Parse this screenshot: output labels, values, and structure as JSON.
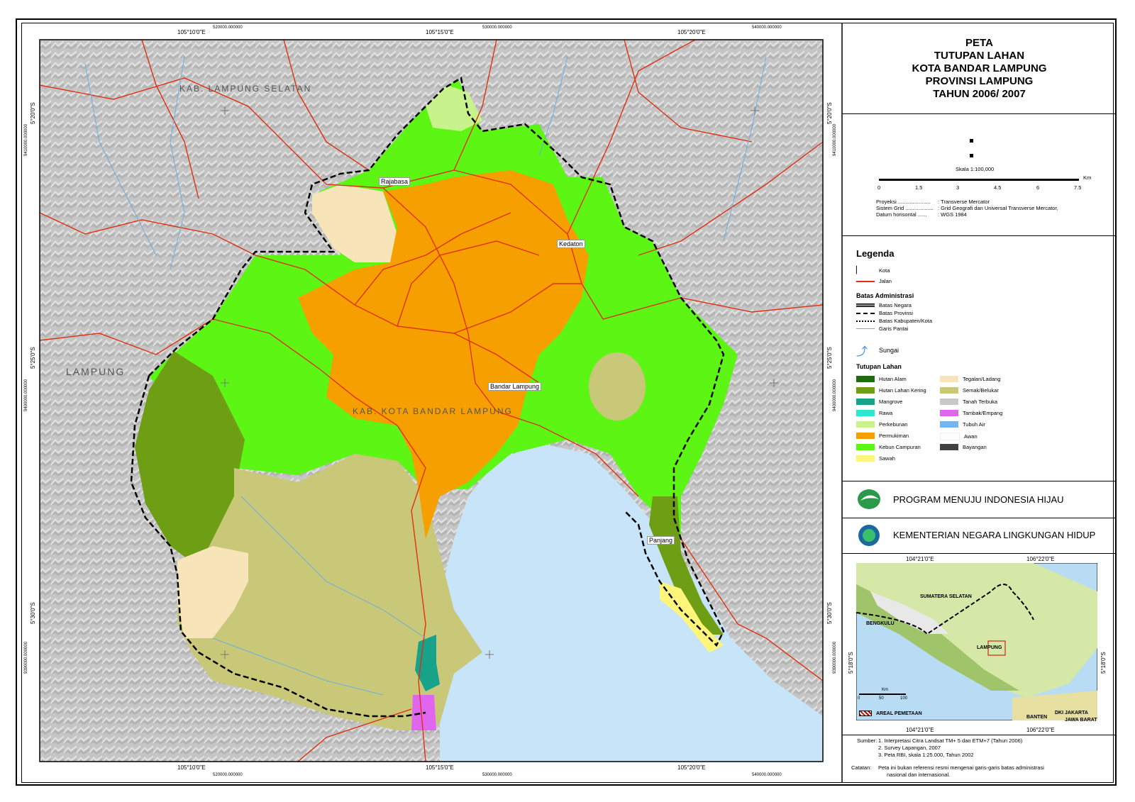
{
  "map": {
    "top_coords": [
      "105°10'0\"E",
      "105°15'0\"E",
      "105°20'0\"E"
    ],
    "top_utm": [
      "520000.000000",
      "530000.000000",
      "540000.000000"
    ],
    "bottom_coords": [
      "105°10'0\"E",
      "105°15'0\"E",
      "105°20'0\"E"
    ],
    "bottom_utm": [
      "520000.000000",
      "530000.000000",
      "540000.000000"
    ],
    "left_coords": [
      "5°20'0\"S",
      "5°25'0\"S",
      "5°30'0\"S"
    ],
    "left_utm": [
      "9410000.000000",
      "9400000.000000",
      "9390000.000000"
    ],
    "right_coords": [
      "5°20'0\"S",
      "5°25'0\"S",
      "5°30'0\"S"
    ],
    "right_utm": [
      "9410000.000000",
      "9400000.000000",
      "9390000.000000"
    ],
    "region_labels": [
      "KAB. LAMPUNG SELATAN",
      "LAMPUNG",
      "KAB. KOTA BANDAR LAMPUNG"
    ],
    "cities": [
      "Rajabasa",
      "Kedaton",
      "Bandar Lampung",
      "Panjang"
    ],
    "colors": {
      "hutan_alam": "#1e6b12",
      "hutan_lahan_kering": "#6e9e14",
      "mangrove": "#16a38a",
      "rawa": "#2de8d0",
      "perkebunan": "#c8f28c",
      "permukiman": "#f5a000",
      "kebun_campuran": "#5cf514",
      "sawah": "#fff57a",
      "tegalan": "#f7e4b8",
      "semak": "#c8c878",
      "tanah_terbuka": "#c8c8c8",
      "tambak": "#e066f0",
      "tubuh_air": "#76b4f0",
      "awan": "#ffffff",
      "bayangan": "#404040",
      "sea": "#c8e4f8",
      "road": "#e03010",
      "river": "#6aaee0"
    }
  },
  "title": {
    "lines": [
      "PETA",
      "TUTUPAN LAHAN",
      "KOTA BANDAR LAMPUNG",
      "PROVINSI LAMPUNG",
      "TAHUN 2006/ 2007"
    ]
  },
  "scale": {
    "label": "Skala  1:100,000",
    "ticks": [
      "0",
      "1.5",
      "3",
      "4.5",
      "6",
      "7.5"
    ],
    "unit": "Km",
    "proj_keys": [
      "Proyeksi ......................",
      "Sistem Grid ...................",
      "Datum horisontal ......"
    ],
    "proj_vals": [
      ": Transverse Mercator",
      ": Grid Geografi dan Universal Transverse Mercator,",
      ": WGS 1984"
    ]
  },
  "legend": {
    "title": "Legenda",
    "kota": "Kota",
    "jalan": "Jalan",
    "batas_title": "Batas Administrasi",
    "batas": [
      "Batas Negara",
      "Batas Provinsi",
      "Batas Kabupaten/Kota",
      "Garis Pantai"
    ],
    "sungai": "Sungai",
    "tutupan_title": "Tutupan Lahan",
    "left_items": [
      "Hutan Alam",
      "Hutan Lahan Kering",
      "Mangrove",
      "Rawa",
      "Perkebunan",
      "Permukiman",
      "Kebun Campuran",
      "Sawah"
    ],
    "right_items": [
      "Tegalan/Ladang",
      "Semak/Belukar",
      "Tanah Terbuka",
      "Tambak/Empang",
      "Tubuh Air",
      "Awan",
      "Bayangan"
    ]
  },
  "programs": [
    "PROGRAM MENUJU INDONESIA HIJAU",
    "KEMENTERIAN NEGARA LINGKUNGAN HIDUP"
  ],
  "inset": {
    "top_coords": [
      "104°21'0\"E",
      "106°22'0\"E"
    ],
    "bottom_coords": [
      "104°21'0\"E",
      "106°22'0\"E"
    ],
    "side_coord": "5°18'0\"S",
    "labels": [
      "SUMATERA SELATAN",
      "BENGKULU",
      "LAMPUNG",
      "BANTEN",
      "DKI JAKARTA",
      "JAWA BARAT"
    ],
    "scale_ticks": [
      "0",
      "50",
      "100"
    ],
    "scale_unit": "Km",
    "areal": "AREAL PEMETAAN"
  },
  "sources": {
    "sumber_label": "Sumber:",
    "items": [
      "1. Interpretasi Citra Landsat TM+ 5 dan ETM+7 (Tahun 2006)",
      "2. Survey Lapangan, 2007",
      "3. Peta RBI, skala 1:25.000, Tahun 2002"
    ],
    "catatan_label": "Catatan:",
    "catatan": [
      "Peta ini bukan referensi resmi mengenai garis-garis batas administrasi",
      "nasional dan internasional."
    ]
  }
}
